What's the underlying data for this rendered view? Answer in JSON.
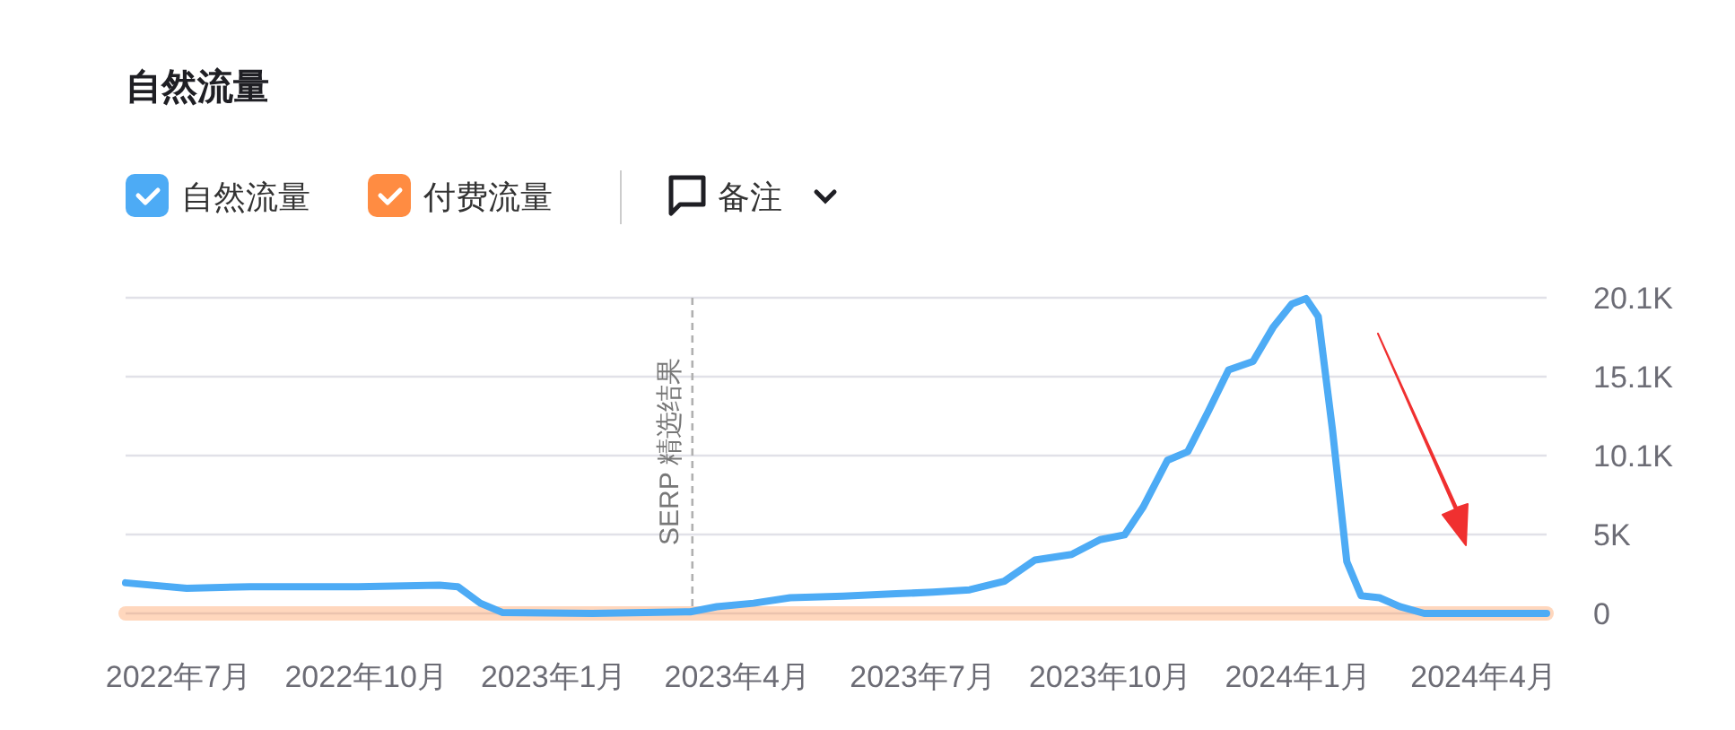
{
  "chart_data": {
    "type": "line",
    "title": "自然流量",
    "legend": "top left",
    "grid": "y",
    "xlim": [
      "2022-06-05",
      "2024-05-02"
    ],
    "xticks": [
      {
        "value": "2022-07-01",
        "label": "2022年7月"
      },
      {
        "value": "2022-10-01",
        "label": "2022年10月"
      },
      {
        "value": "2023-01-01",
        "label": "2023年1月"
      },
      {
        "value": "2023-04-01",
        "label": "2023年4月"
      },
      {
        "value": "2023-07-01",
        "label": "2023年7月"
      },
      {
        "value": "2023-10-01",
        "label": "2023年10月"
      },
      {
        "value": "2024-01-01",
        "label": "2024年1月"
      },
      {
        "value": "2024-04-01",
        "label": "2024年4月"
      }
    ],
    "ylim": [
      0,
      20100
    ],
    "yticks": [
      0,
      {
        "value": 5025,
        "label": "5K"
      },
      {
        "value": 10050,
        "label": "10.1K"
      },
      {
        "value": 15075,
        "label": "15.1K"
      },
      {
        "value": 20100,
        "label": "20.1K"
      }
    ],
    "series": [
      {
        "name": "自然流量",
        "color": "#4dabf5",
        "x": [
          "2022-06-05",
          "2022-07-05",
          "2022-08-05",
          "2022-09-27",
          "2022-11-06",
          "2022-11-15",
          "2022-11-26",
          "2022-12-07",
          "2023-01-20",
          "2023-03-09",
          "2023-03-22",
          "2023-04-09",
          "2023-04-27",
          "2023-05-23",
          "2023-06-18",
          "2023-07-06",
          "2023-07-24",
          "2023-08-10",
          "2023-08-25",
          "2023-09-12",
          "2023-09-26",
          "2023-10-08",
          "2023-10-17",
          "2023-10-29",
          "2023-11-08",
          "2023-11-18",
          "2023-11-28",
          "2023-12-10",
          "2023-12-20",
          "2023-12-29",
          "2024-01-05",
          "2024-01-11",
          "2024-01-18",
          "2024-01-25",
          "2024-02-01",
          "2024-02-10",
          "2024-02-20",
          "2024-03-03",
          "2024-05-02"
        ],
        "values": [
          1950,
          1600,
          1700,
          1700,
          1800,
          1700,
          650,
          50,
          0,
          100,
          430,
          650,
          1000,
          1100,
          1250,
          1350,
          1500,
          2050,
          3400,
          3750,
          4700,
          5000,
          6750,
          9750,
          10300,
          12850,
          15500,
          16050,
          18250,
          19700,
          20050,
          18900,
          11650,
          3300,
          1130,
          1000,
          430,
          0,
          0
        ]
      },
      {
        "name": "付费流量",
        "color": "#ff8c42",
        "x": [
          "2022-06-05",
          "2024-05-02"
        ],
        "values": [
          0,
          0
        ]
      }
    ],
    "ref_lines": [
      {
        "axis": "x",
        "value": "2023-03-10",
        "label": "SERP 精选结果",
        "color": "#b0b0b0",
        "line_style": "dashed"
      }
    ],
    "annotations": [
      "备注"
    ]
  }
}
